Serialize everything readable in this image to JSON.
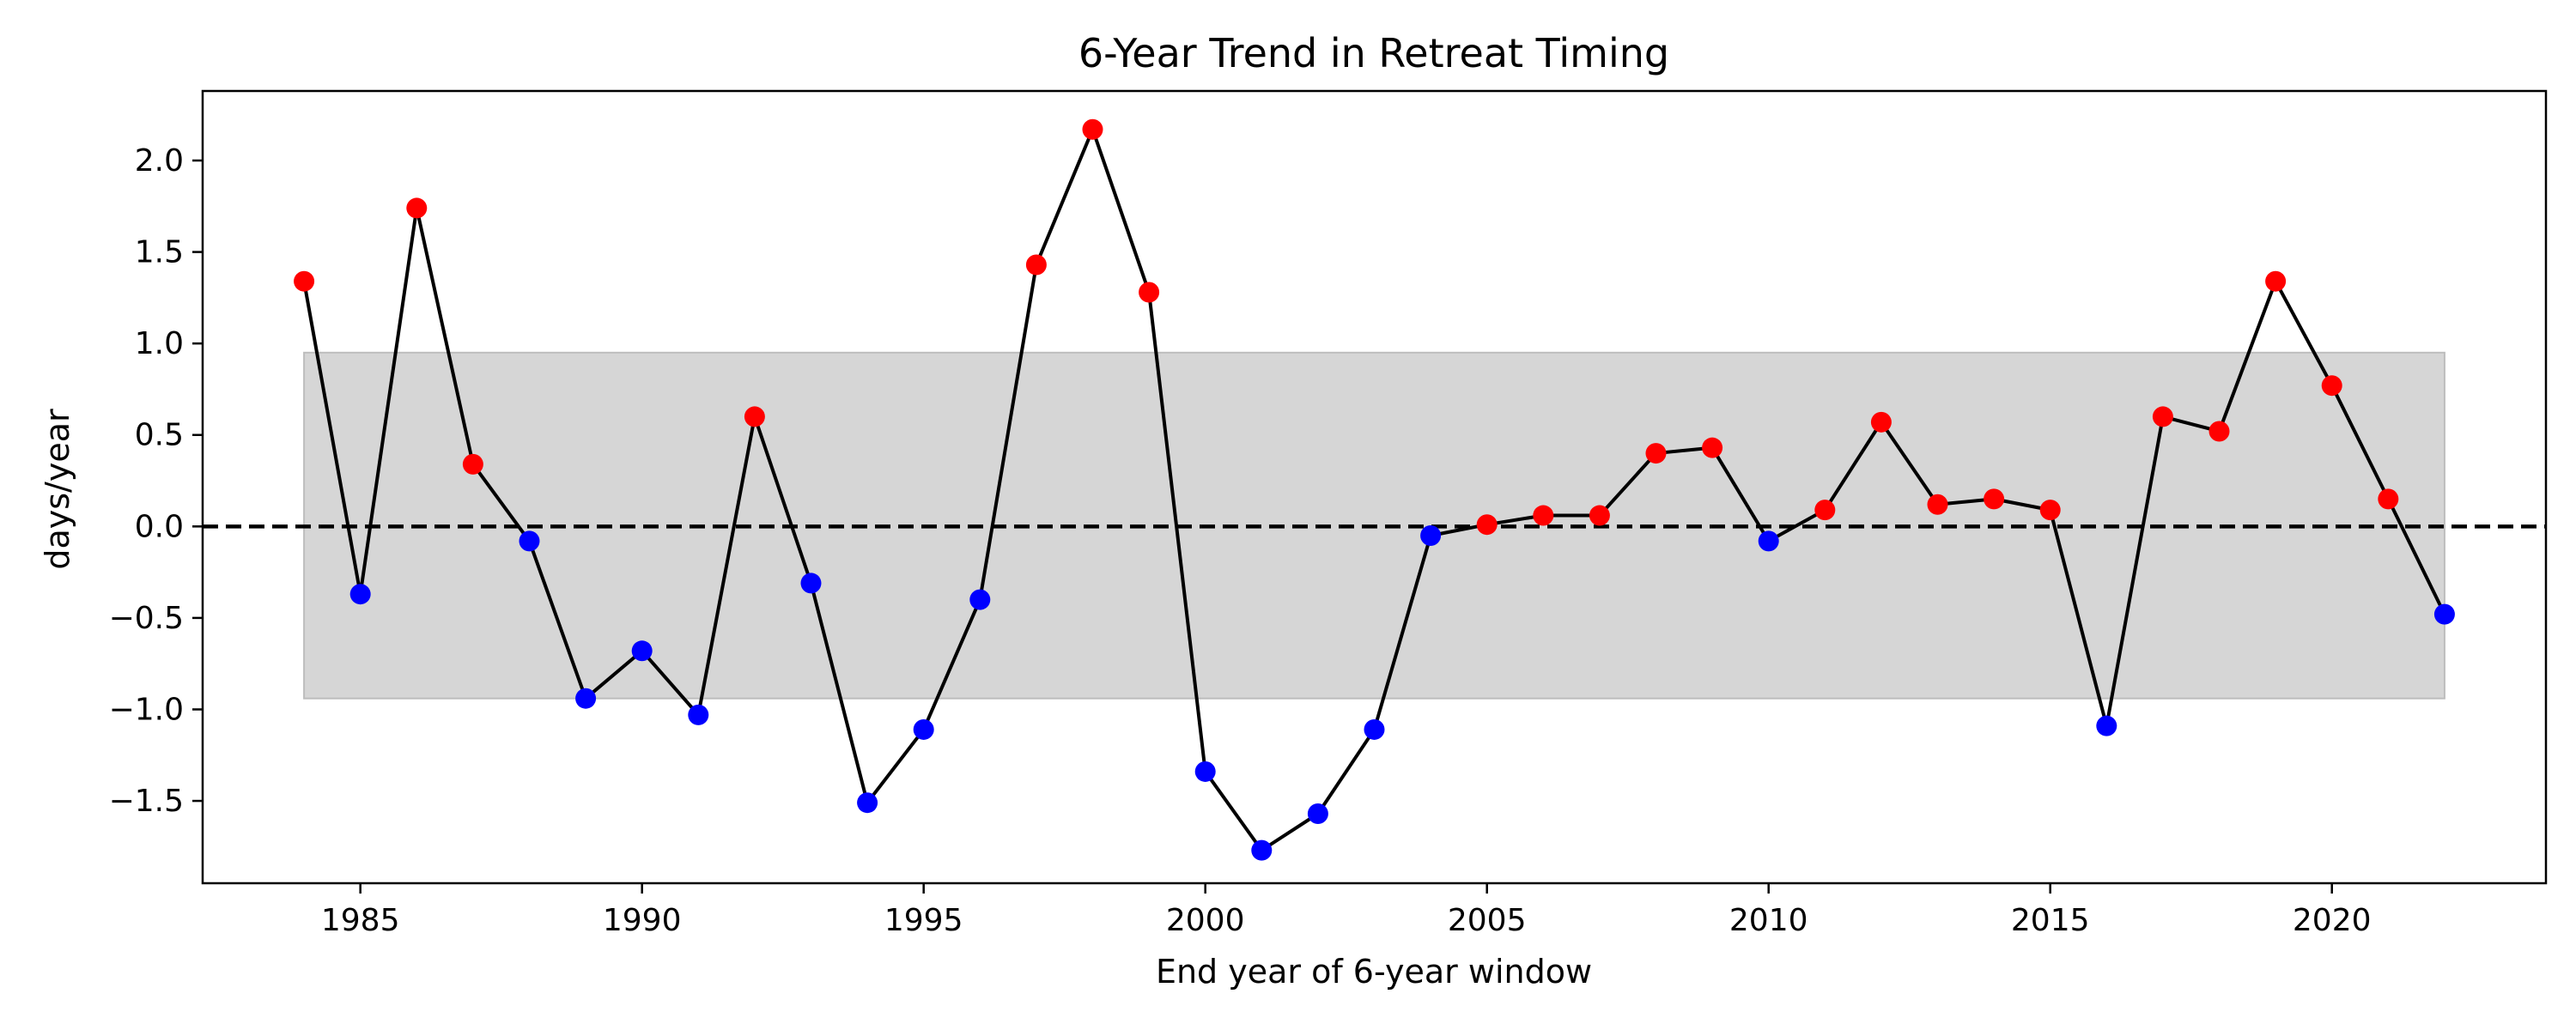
{
  "chart_data": {
    "type": "line",
    "title": "6-Year Trend in Retreat Timing",
    "xlabel": "End year of 6-year window",
    "ylabel": "days/year",
    "xlim": [
      1982.2,
      2023.8
    ],
    "ylim": [
      -1.95,
      2.38
    ],
    "xticks": [
      1985,
      1990,
      1995,
      2000,
      2005,
      2010,
      2015,
      2020
    ],
    "yticks": [
      -1.5,
      -1.0,
      -0.5,
      0.0,
      0.5,
      1.0,
      1.5,
      2.0
    ],
    "ytick_labels": [
      "−1.5",
      "−1.0",
      "−0.5",
      "0.0",
      "0.5",
      "1.0",
      "1.5",
      "2.0"
    ],
    "reference_line": {
      "y": 0.0,
      "style": "dashed",
      "color": "#000000"
    },
    "band": {
      "x_start": 1984,
      "x_end": 2022,
      "y_low": -0.94,
      "y_high": 0.95,
      "color": "#d6d6d6"
    },
    "grid": false,
    "line_color": "#000000",
    "positive_color": "#ff0000",
    "negative_color": "#0000ff",
    "x": [
      1984,
      1985,
      1986,
      1987,
      1988,
      1989,
      1990,
      1991,
      1992,
      1993,
      1994,
      1995,
      1996,
      1997,
      1998,
      1999,
      2000,
      2001,
      2002,
      2003,
      2004,
      2005,
      2006,
      2007,
      2008,
      2009,
      2010,
      2011,
      2012,
      2013,
      2014,
      2015,
      2016,
      2017,
      2018,
      2019,
      2020,
      2021,
      2022
    ],
    "values": [
      1.34,
      -0.37,
      1.74,
      0.34,
      -0.08,
      -0.94,
      -0.68,
      -1.03,
      0.6,
      -0.31,
      -1.51,
      -1.11,
      -0.4,
      1.43,
      2.17,
      1.28,
      -1.34,
      -1.77,
      -1.57,
      -1.11,
      -0.05,
      0.01,
      0.06,
      0.06,
      0.4,
      0.43,
      -0.08,
      0.09,
      0.57,
      0.12,
      0.15,
      0.09,
      -1.09,
      0.6,
      0.52,
      1.34,
      0.77,
      0.15,
      -0.48
    ]
  }
}
